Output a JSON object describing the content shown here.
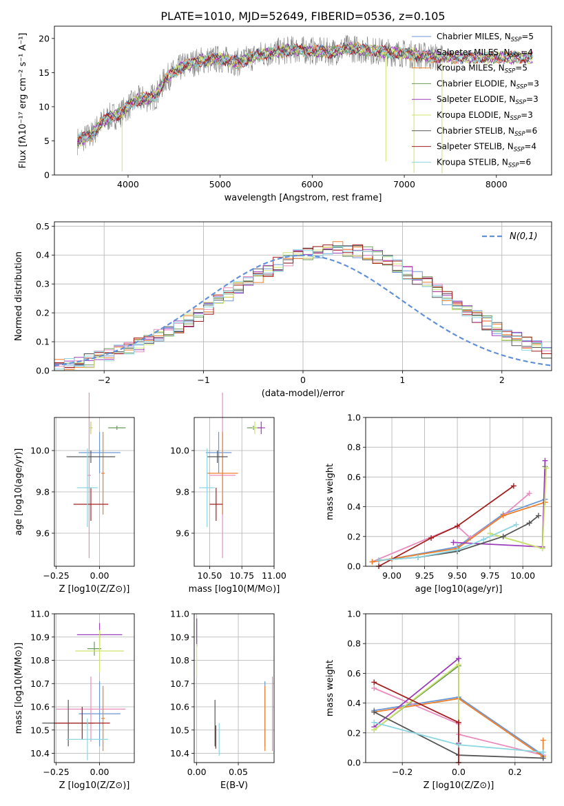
{
  "title": "PLATE=1010, MJD=52649, FIBERID=0536, z=0.105",
  "colors": [
    "#6b96d4",
    "#e98bbd",
    "#ee7f2b",
    "#6a9a5a",
    "#9b3dba",
    "#cde36e",
    "#555555",
    "#a31f1f",
    "#8ad6e0"
  ],
  "chart_data": [
    {
      "id": "spectrum",
      "type": "line",
      "title": "PLATE=1010, MJD=52649, FIBERID=0536, z=0.105",
      "xlabel": "wavelength [Angstrom, rest frame]",
      "ylabel": "Flux [fλ10⁻¹⁷ erg cm⁻² s⁻¹ A⁻¹]",
      "xlim": [
        3200,
        8600
      ],
      "ylim": [
        0,
        21.8
      ],
      "xticks": [
        4000,
        5000,
        6000,
        7000,
        8000
      ],
      "yticks": [
        0,
        5,
        10,
        15,
        20
      ],
      "legend_position": "top-right",
      "legend": [
        "Chabrier MILES, N_SSP=5",
        "Salpeter MILES, N_SSP=4",
        "Kroupa MILES, N_SSP=5",
        "Chabrier ELODIE, N_SSP=3",
        "Salpeter ELODIE, N_SSP=3",
        "Kroupa ELODIE, N_SSP=3",
        "Chabrier STELIB, N_SSP=6",
        "Salpeter STELIB, N_SSP=4",
        "Kroupa STELIB, N_SSP=6"
      ],
      "observed_envelope": {
        "x": [
          3450,
          3600,
          3700,
          3800,
          3900,
          4000,
          4100,
          4200,
          4300,
          4400,
          4600,
          4800,
          5000,
          5200,
          5400,
          5600,
          5800,
          6000,
          6200,
          6400,
          6600,
          6800,
          7000,
          7200,
          7400
        ],
        "y": [
          5,
          5.8,
          7.5,
          8.5,
          8.8,
          10,
          11,
          11.2,
          11.5,
          14,
          16,
          16.8,
          17,
          16.5,
          17.5,
          18,
          18.4,
          18.2,
          18,
          18.6,
          18.3,
          18,
          17.8,
          17.5,
          17.2
        ]
      },
      "model_x_range": [
        3450,
        8400
      ],
      "observed_x_range": [
        3450,
        7420
      ]
    },
    {
      "id": "residuals",
      "type": "histogram",
      "xlabel": "(data-model)/error",
      "ylabel": "Normed distribution",
      "xlim": [
        -2.5,
        2.5
      ],
      "ylim": [
        0,
        0.515
      ],
      "xticks": [
        -2,
        -1,
        0,
        1,
        2
      ],
      "yticks": [
        0.0,
        0.1,
        0.2,
        0.3,
        0.4,
        0.5
      ],
      "grid": true,
      "legend_position": "top-right",
      "legend": [
        "N(0,1)"
      ],
      "bin_width": 0.1,
      "bin_start": -2.5,
      "base_heights": [
        0.018,
        0.022,
        0.028,
        0.035,
        0.045,
        0.055,
        0.065,
        0.078,
        0.09,
        0.105,
        0.12,
        0.138,
        0.155,
        0.175,
        0.195,
        0.215,
        0.24,
        0.262,
        0.285,
        0.31,
        0.33,
        0.35,
        0.368,
        0.385,
        0.398,
        0.408,
        0.415,
        0.42,
        0.422,
        0.42,
        0.415,
        0.405,
        0.392,
        0.378,
        0.36,
        0.34,
        0.32,
        0.3,
        0.275,
        0.252,
        0.23,
        0.208,
        0.185,
        0.165,
        0.145,
        0.125,
        0.108,
        0.092,
        0.078,
        0.065
      ]
    },
    {
      "id": "age-vs-Z",
      "type": "errorbar",
      "xlabel": "Z [log10(Z/Z⊙)]",
      "ylabel": "age [log10(age/yr)]",
      "xlim": [
        -0.26,
        0.2
      ],
      "ylim": [
        9.44,
        10.16
      ],
      "xticks": [
        -0.25,
        0.0
      ],
      "xticklabels": [
        "−0.25",
        "0.00"
      ],
      "yticks": [
        9.6,
        9.8,
        10.0
      ],
      "grid": true,
      "points": [
        {
          "x": 0.0,
          "xerr": 0.12,
          "y": 9.99,
          "yerr": 0.1
        },
        {
          "x": -0.06,
          "xerr": 0.01,
          "y": 9.88,
          "yerr": 0.4
        },
        {
          "x": 0.02,
          "xerr": 0.01,
          "y": 9.89,
          "yerr": 0.2
        },
        {
          "x": 0.1,
          "xerr": 0.05,
          "y": 10.11,
          "yerr": 0.01
        },
        {
          "x": -0.05,
          "xerr": 0.01,
          "y": 10.11,
          "yerr": 0.03
        },
        {
          "x": -0.05,
          "xerr": 0.01,
          "y": 10.11,
          "yerr": 0.03
        },
        {
          "x": -0.05,
          "xerr": 0.14,
          "y": 9.97,
          "yerr": 0.03
        },
        {
          "x": -0.05,
          "xerr": 0.1,
          "y": 9.74,
          "yerr": 0.08
        },
        {
          "x": -0.07,
          "xerr": 0.06,
          "y": 9.82,
          "yerr": 0.19
        }
      ]
    },
    {
      "id": "age-vs-mass",
      "type": "errorbar",
      "xlabel": "mass [log10(M/M⊙)]",
      "ylabel": "",
      "xlim": [
        10.38,
        11.0
      ],
      "ylim": [
        9.44,
        10.16
      ],
      "xticks": [
        10.5,
        10.75,
        11.0
      ],
      "xticklabels": [
        "10.50",
        "10.75",
        "11.00"
      ],
      "yticks": [
        9.6,
        9.8,
        10.0
      ],
      "grid": true,
      "points": [
        {
          "x": 10.57,
          "xerr": 0.1,
          "y": 9.99,
          "yerr": 0.1
        },
        {
          "x": 10.6,
          "xerr": 0.1,
          "y": 9.88,
          "yerr": 0.4
        },
        {
          "x": 10.6,
          "xerr": 0.12,
          "y": 9.89,
          "yerr": 0.2
        },
        {
          "x": 10.84,
          "xerr": 0.05,
          "y": 10.11,
          "yerr": 0.01
        },
        {
          "x": 10.9,
          "xerr": 0.03,
          "y": 10.11,
          "yerr": 0.03
        },
        {
          "x": 10.85,
          "xerr": 0.02,
          "y": 10.11,
          "yerr": 0.03
        },
        {
          "x": 10.56,
          "xerr": 0.08,
          "y": 9.97,
          "yerr": 0.03
        },
        {
          "x": 10.55,
          "xerr": 0.05,
          "y": 9.74,
          "yerr": 0.08
        },
        {
          "x": 10.48,
          "xerr": 0.06,
          "y": 9.82,
          "yerr": 0.19
        }
      ]
    },
    {
      "id": "massweight-vs-age",
      "type": "line",
      "xlabel": "age [log10(age/yr)]",
      "ylabel": "mass weight",
      "xlim": [
        8.8,
        10.22
      ],
      "ylim": [
        0,
        1.0
      ],
      "xticks": [
        9.0,
        9.25,
        9.5,
        9.75,
        10.0
      ],
      "xticklabels": [
        "9.00",
        "9.25",
        "9.50",
        "9.75",
        "10.00"
      ],
      "yticks": [
        0.0,
        0.2,
        0.4,
        0.6,
        0.8,
        1.0
      ],
      "grid": true,
      "series": [
        {
          "x": [
            8.85,
            9.0,
            9.5,
            9.85,
            10.17
          ],
          "y": [
            0.03,
            0.05,
            0.13,
            0.35,
            0.45
          ]
        },
        {
          "x": [
            8.85,
            9.5,
            9.6,
            9.85,
            10.05
          ],
          "y": [
            0.03,
            0.27,
            0.19,
            0.34,
            0.49
          ]
        },
        {
          "x": [
            8.85,
            9.0,
            9.5,
            9.85,
            10.17
          ],
          "y": [
            0.03,
            0.05,
            0.12,
            0.34,
            0.43
          ]
        },
        {
          "x": [
            9.75,
            10.15,
            10.17
          ],
          "y": [
            0.22,
            0.12,
            0.67
          ]
        },
        {
          "x": [
            9.47,
            10.15,
            10.17
          ],
          "y": [
            0.16,
            0.13,
            0.71
          ]
        },
        {
          "x": [
            9.75,
            10.15,
            10.18
          ],
          "y": [
            0.22,
            0.12,
            0.66
          ]
        },
        {
          "x": [
            8.9,
            9.2,
            9.5,
            9.85,
            10.05,
            10.12
          ],
          "y": [
            0.04,
            0.06,
            0.1,
            0.2,
            0.29,
            0.34
          ]
        },
        {
          "x": [
            8.9,
            9.3,
            9.5,
            9.93
          ],
          "y": [
            0.0,
            0.19,
            0.27,
            0.54
          ]
        },
        {
          "x": [
            8.9,
            9.2,
            9.5,
            9.7,
            9.95
          ],
          "y": [
            0.04,
            0.06,
            0.11,
            0.18,
            0.28
          ]
        }
      ]
    },
    {
      "id": "mass-vs-Z",
      "type": "errorbar",
      "xlabel": "Z [log10(Z/Z⊙)]",
      "ylabel": "mass [log10(M/M⊙)]",
      "xlim": [
        -0.26,
        0.2
      ],
      "ylim": [
        10.36,
        11.0
      ],
      "xticks": [
        -0.25,
        0.0
      ],
      "xticklabels": [
        "−0.25",
        "0.00"
      ],
      "yticks": [
        10.4,
        10.5,
        10.6,
        10.7,
        10.8,
        10.9,
        11.0
      ],
      "grid": true,
      "points": [
        {
          "x": 0.0,
          "xerr": 0.12,
          "y": 10.57,
          "yerr": 0.14
        },
        {
          "x": -0.05,
          "xerr": 0.2,
          "y": 10.59,
          "yerr": 0.14
        },
        {
          "x": 0.02,
          "xerr": 0.01,
          "y": 10.55,
          "yerr": 0.14
        },
        {
          "x": -0.03,
          "xerr": 0.04,
          "y": 10.85,
          "yerr": 0.03
        },
        {
          "x": 0.0,
          "xerr": 0.13,
          "y": 10.91,
          "yerr": 0.05
        },
        {
          "x": 0.0,
          "xerr": 0.14,
          "y": 10.84,
          "yerr": 0.09
        },
        {
          "x": -0.18,
          "xerr": 0.15,
          "y": 10.53,
          "yerr": 0.1
        },
        {
          "x": -0.1,
          "xerr": 0.16,
          "y": 10.53,
          "yerr": 0.07
        },
        {
          "x": -0.07,
          "xerr": 0.12,
          "y": 10.46,
          "yerr": 0.09
        }
      ]
    },
    {
      "id": "mass-vs-EBV",
      "type": "errorbar",
      "xlabel": "E(B-V)",
      "ylabel": "",
      "xlim": [
        -0.003,
        0.093
      ],
      "ylim": [
        10.36,
        11.0
      ],
      "xticks": [
        0.0,
        0.05
      ],
      "xticklabels": [
        "0.00",
        "0.05"
      ],
      "yticks": [
        10.4,
        10.5,
        10.6,
        10.7,
        10.8,
        10.9,
        11.0
      ],
      "grid": true,
      "points": [
        {
          "x": 0.082,
          "xerr": 0,
          "y": 10.57,
          "yerr": 0.14
        },
        {
          "x": 0.091,
          "xerr": 0,
          "y": 10.57,
          "yerr": 0.16
        },
        {
          "x": 0.082,
          "xerr": 0,
          "y": 10.55,
          "yerr": 0.14
        },
        {
          "x": 0.0,
          "xerr": 0,
          "y": 10.92,
          "yerr": 0.06
        },
        {
          "x": 0.0,
          "xerr": 0,
          "y": 10.92,
          "yerr": 0.06
        },
        {
          "x": 0.0,
          "xerr": 0,
          "y": 10.8,
          "yerr": 0.07
        },
        {
          "x": 0.022,
          "xerr": 0,
          "y": 10.53,
          "yerr": 0.1
        },
        {
          "x": 0.023,
          "xerr": 0,
          "y": 10.47,
          "yerr": 0.05
        },
        {
          "x": 0.027,
          "xerr": 0,
          "y": 10.46,
          "yerr": 0.07
        }
      ]
    },
    {
      "id": "massweight-vs-Z",
      "type": "line",
      "xlabel": "Z [log10(Z/Z⊙)]",
      "ylabel": "mass weight",
      "xlim": [
        -0.33,
        0.33
      ],
      "ylim": [
        0,
        1.0
      ],
      "xticks": [
        -0.2,
        0.0,
        0.2
      ],
      "xticklabels": [
        "−0.2",
        "0.0",
        "0.2"
      ],
      "yticks": [
        0.0,
        0.2,
        0.4,
        0.6,
        0.8,
        1.0
      ],
      "grid": true,
      "series": [
        {
          "x": [
            -0.3,
            0.0,
            0.3
          ],
          "y": [
            0.35,
            0.44,
            0.05
          ]
        },
        {
          "x": [
            -0.3,
            0.0,
            0.0,
            0.3
          ],
          "y": [
            0.5,
            0.26,
            0.19,
            0.05
          ]
        },
        {
          "x": [
            -0.3,
            0.0,
            0.3,
            0.3
          ],
          "y": [
            0.34,
            0.43,
            0.04,
            0.15
          ]
        },
        {
          "x": [
            -0.3,
            0.0,
            0.0
          ],
          "y": [
            0.22,
            0.65,
            0.12
          ]
        },
        {
          "x": [
            -0.3,
            0.0,
            0.0
          ],
          "y": [
            0.24,
            0.7,
            0.13
          ]
        },
        {
          "x": [
            -0.3,
            0.0,
            0.0
          ],
          "y": [
            0.22,
            0.66,
            0.12
          ]
        },
        {
          "x": [
            -0.3,
            0.0,
            0.3
          ],
          "y": [
            0.34,
            0.05,
            0.03
          ]
        },
        {
          "x": [
            -0.3,
            0.0,
            0.0
          ],
          "y": [
            0.54,
            0.27,
            0.0
          ]
        },
        {
          "x": [
            -0.3,
            0.0,
            0.3
          ],
          "y": [
            0.27,
            0.12,
            0.07
          ]
        }
      ]
    }
  ],
  "labels": {
    "spectrum_ylabel": "Flux [fλ10⁻¹⁷ erg cm⁻² s⁻¹ A⁻¹]",
    "normal_legend": "𝒩(0, 1)"
  }
}
